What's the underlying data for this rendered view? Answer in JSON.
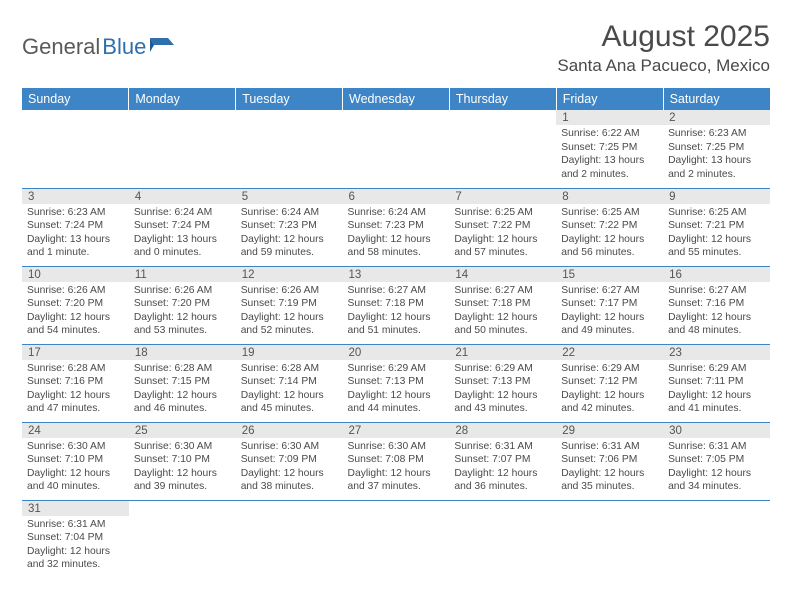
{
  "logo": {
    "part1": "General",
    "part2": "Blue"
  },
  "title": "August 2025",
  "location": "Santa Ana Pacueco, Mexico",
  "colors": {
    "header_bg": "#3d85c6",
    "header_text": "#ffffff",
    "cell_border": "#3d85c6",
    "daynum_bg": "#e8e8e8",
    "body_text": "#4a4a4a",
    "logo_gray": "#5a5a5a",
    "logo_blue": "#2f6fab"
  },
  "daysOfWeek": [
    "Sunday",
    "Monday",
    "Tuesday",
    "Wednesday",
    "Thursday",
    "Friday",
    "Saturday"
  ],
  "weeks": [
    [
      null,
      null,
      null,
      null,
      null,
      {
        "n": "1",
        "sr": "Sunrise: 6:22 AM",
        "ss": "Sunset: 7:25 PM",
        "dl": "Daylight: 13 hours and 2 minutes."
      },
      {
        "n": "2",
        "sr": "Sunrise: 6:23 AM",
        "ss": "Sunset: 7:25 PM",
        "dl": "Daylight: 13 hours and 2 minutes."
      }
    ],
    [
      {
        "n": "3",
        "sr": "Sunrise: 6:23 AM",
        "ss": "Sunset: 7:24 PM",
        "dl": "Daylight: 13 hours and 1 minute."
      },
      {
        "n": "4",
        "sr": "Sunrise: 6:24 AM",
        "ss": "Sunset: 7:24 PM",
        "dl": "Daylight: 13 hours and 0 minutes."
      },
      {
        "n": "5",
        "sr": "Sunrise: 6:24 AM",
        "ss": "Sunset: 7:23 PM",
        "dl": "Daylight: 12 hours and 59 minutes."
      },
      {
        "n": "6",
        "sr": "Sunrise: 6:24 AM",
        "ss": "Sunset: 7:23 PM",
        "dl": "Daylight: 12 hours and 58 minutes."
      },
      {
        "n": "7",
        "sr": "Sunrise: 6:25 AM",
        "ss": "Sunset: 7:22 PM",
        "dl": "Daylight: 12 hours and 57 minutes."
      },
      {
        "n": "8",
        "sr": "Sunrise: 6:25 AM",
        "ss": "Sunset: 7:22 PM",
        "dl": "Daylight: 12 hours and 56 minutes."
      },
      {
        "n": "9",
        "sr": "Sunrise: 6:25 AM",
        "ss": "Sunset: 7:21 PM",
        "dl": "Daylight: 12 hours and 55 minutes."
      }
    ],
    [
      {
        "n": "10",
        "sr": "Sunrise: 6:26 AM",
        "ss": "Sunset: 7:20 PM",
        "dl": "Daylight: 12 hours and 54 minutes."
      },
      {
        "n": "11",
        "sr": "Sunrise: 6:26 AM",
        "ss": "Sunset: 7:20 PM",
        "dl": "Daylight: 12 hours and 53 minutes."
      },
      {
        "n": "12",
        "sr": "Sunrise: 6:26 AM",
        "ss": "Sunset: 7:19 PM",
        "dl": "Daylight: 12 hours and 52 minutes."
      },
      {
        "n": "13",
        "sr": "Sunrise: 6:27 AM",
        "ss": "Sunset: 7:18 PM",
        "dl": "Daylight: 12 hours and 51 minutes."
      },
      {
        "n": "14",
        "sr": "Sunrise: 6:27 AM",
        "ss": "Sunset: 7:18 PM",
        "dl": "Daylight: 12 hours and 50 minutes."
      },
      {
        "n": "15",
        "sr": "Sunrise: 6:27 AM",
        "ss": "Sunset: 7:17 PM",
        "dl": "Daylight: 12 hours and 49 minutes."
      },
      {
        "n": "16",
        "sr": "Sunrise: 6:27 AM",
        "ss": "Sunset: 7:16 PM",
        "dl": "Daylight: 12 hours and 48 minutes."
      }
    ],
    [
      {
        "n": "17",
        "sr": "Sunrise: 6:28 AM",
        "ss": "Sunset: 7:16 PM",
        "dl": "Daylight: 12 hours and 47 minutes."
      },
      {
        "n": "18",
        "sr": "Sunrise: 6:28 AM",
        "ss": "Sunset: 7:15 PM",
        "dl": "Daylight: 12 hours and 46 minutes."
      },
      {
        "n": "19",
        "sr": "Sunrise: 6:28 AM",
        "ss": "Sunset: 7:14 PM",
        "dl": "Daylight: 12 hours and 45 minutes."
      },
      {
        "n": "20",
        "sr": "Sunrise: 6:29 AM",
        "ss": "Sunset: 7:13 PM",
        "dl": "Daylight: 12 hours and 44 minutes."
      },
      {
        "n": "21",
        "sr": "Sunrise: 6:29 AM",
        "ss": "Sunset: 7:13 PM",
        "dl": "Daylight: 12 hours and 43 minutes."
      },
      {
        "n": "22",
        "sr": "Sunrise: 6:29 AM",
        "ss": "Sunset: 7:12 PM",
        "dl": "Daylight: 12 hours and 42 minutes."
      },
      {
        "n": "23",
        "sr": "Sunrise: 6:29 AM",
        "ss": "Sunset: 7:11 PM",
        "dl": "Daylight: 12 hours and 41 minutes."
      }
    ],
    [
      {
        "n": "24",
        "sr": "Sunrise: 6:30 AM",
        "ss": "Sunset: 7:10 PM",
        "dl": "Daylight: 12 hours and 40 minutes."
      },
      {
        "n": "25",
        "sr": "Sunrise: 6:30 AM",
        "ss": "Sunset: 7:10 PM",
        "dl": "Daylight: 12 hours and 39 minutes."
      },
      {
        "n": "26",
        "sr": "Sunrise: 6:30 AM",
        "ss": "Sunset: 7:09 PM",
        "dl": "Daylight: 12 hours and 38 minutes."
      },
      {
        "n": "27",
        "sr": "Sunrise: 6:30 AM",
        "ss": "Sunset: 7:08 PM",
        "dl": "Daylight: 12 hours and 37 minutes."
      },
      {
        "n": "28",
        "sr": "Sunrise: 6:31 AM",
        "ss": "Sunset: 7:07 PM",
        "dl": "Daylight: 12 hours and 36 minutes."
      },
      {
        "n": "29",
        "sr": "Sunrise: 6:31 AM",
        "ss": "Sunset: 7:06 PM",
        "dl": "Daylight: 12 hours and 35 minutes."
      },
      {
        "n": "30",
        "sr": "Sunrise: 6:31 AM",
        "ss": "Sunset: 7:05 PM",
        "dl": "Daylight: 12 hours and 34 minutes."
      }
    ],
    [
      {
        "n": "31",
        "sr": "Sunrise: 6:31 AM",
        "ss": "Sunset: 7:04 PM",
        "dl": "Daylight: 12 hours and 32 minutes."
      },
      null,
      null,
      null,
      null,
      null,
      null
    ]
  ]
}
